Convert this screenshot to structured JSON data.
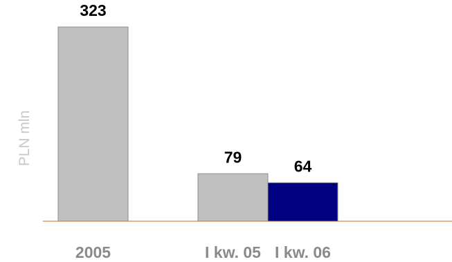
{
  "chart_data": {
    "type": "bar",
    "categories": [
      "2005",
      "",
      "I kw. 05",
      "I kw. 06"
    ],
    "values": [
      323,
      null,
      79,
      64
    ],
    "value_labels": [
      "323",
      "",
      "79",
      "64"
    ],
    "xlabel": "",
    "ylabel": "PLN mln",
    "ylim": [
      0,
      323
    ],
    "grid": false,
    "legend": "none",
    "colors": {
      "bars": [
        "#c0c0c0",
        null,
        "#c0c0c0",
        "#000080"
      ],
      "bar_stroke": "#8c8c8c",
      "axis": "#d2691e",
      "ylabel": "#c8c8c8",
      "tick_labels": "#8a8a8a",
      "value_labels": "#000000"
    }
  }
}
